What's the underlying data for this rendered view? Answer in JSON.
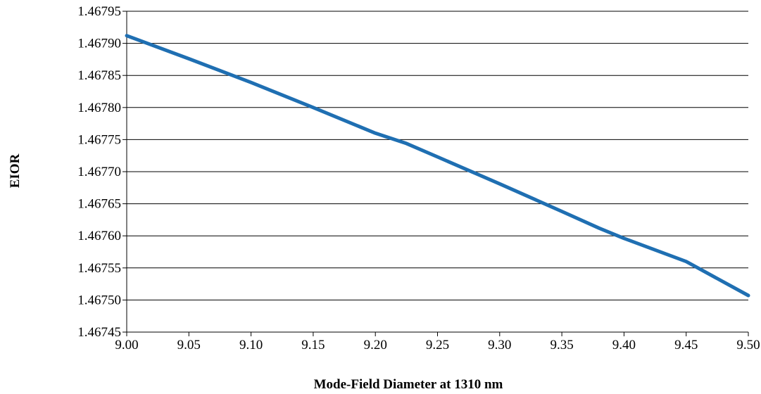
{
  "chart_data": {
    "type": "line",
    "title": "",
    "xlabel": "Mode-Field Diameter at 1310 nm",
    "ylabel": "EIOR",
    "xlim": [
      9.0,
      9.5
    ],
    "ylim": [
      1.46745,
      1.46795
    ],
    "x_ticks": [
      "9.00",
      "9.05",
      "9.10",
      "9.15",
      "9.20",
      "9.25",
      "9.30",
      "9.35",
      "9.40",
      "9.45",
      "9.50"
    ],
    "y_ticks": [
      "1.46745",
      "1.46750",
      "1.46755",
      "1.46760",
      "1.46765",
      "1.46770",
      "1.46775",
      "1.46780",
      "1.46785",
      "1.46790",
      "1.46795"
    ],
    "horizontal_grid": true,
    "legend": "none",
    "series": [
      {
        "color": "#1f6fb2",
        "x": [
          9.0,
          9.05,
          9.1,
          9.15,
          9.2,
          9.225,
          9.25,
          9.3,
          9.35,
          9.38,
          9.4,
          9.45,
          9.5
        ],
        "y": [
          1.467912,
          1.467876,
          1.467839,
          1.4678,
          1.46776,
          1.467744,
          1.467723,
          1.467681,
          1.467638,
          1.467612,
          1.467596,
          1.46756,
          1.467507
        ]
      }
    ]
  }
}
